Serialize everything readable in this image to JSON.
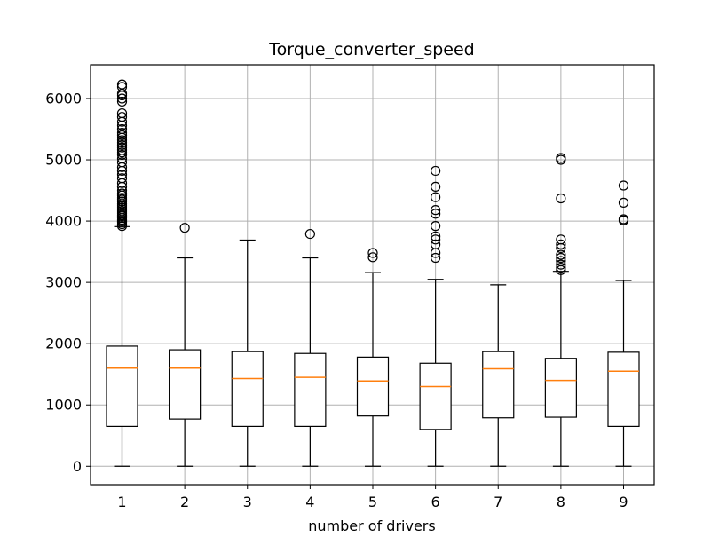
{
  "chart_data": {
    "type": "box",
    "title": "Torque_converter_speed",
    "xlabel": "number of drivers",
    "ylabel": "",
    "categories": [
      "1",
      "2",
      "3",
      "4",
      "5",
      "6",
      "7",
      "8",
      "9"
    ],
    "ylim": [
      -300,
      6550
    ],
    "yticks": [
      0,
      1000,
      2000,
      3000,
      4000,
      5000,
      6000
    ],
    "yticklabels": [
      "0",
      "1000",
      "2000",
      "3000",
      "4000",
      "5000",
      "6000"
    ],
    "grid": true,
    "colors": {
      "box": "#000000",
      "median": "#ff7f0e",
      "grid": "#b0b0b0",
      "flier": "#000000"
    },
    "boxes": [
      {
        "label": "1",
        "whisker_low": 0,
        "q1": 650,
        "median": 1600,
        "q3": 1960,
        "whisker_high": 3910,
        "fliers": [
          3920,
          3950,
          3980,
          4000,
          4020,
          4050,
          4080,
          4100,
          4130,
          4160,
          4190,
          4220,
          4250,
          4280,
          4320,
          4350,
          4380,
          4420,
          4450,
          4500,
          4560,
          4620,
          4700,
          4760,
          4820,
          4880,
          4960,
          5020,
          5080,
          5120,
          5160,
          5200,
          5240,
          5280,
          5320,
          5360,
          5400,
          5440,
          5500,
          5560,
          5620,
          5700,
          5760,
          5950,
          6000,
          6050,
          6080,
          6190,
          6230
        ]
      },
      {
        "label": "2",
        "whisker_low": 0,
        "q1": 770,
        "median": 1600,
        "q3": 1900,
        "whisker_high": 3400,
        "fliers": [
          3890
        ]
      },
      {
        "label": "3",
        "whisker_low": 0,
        "q1": 650,
        "median": 1430,
        "q3": 1870,
        "whisker_high": 3690,
        "fliers": []
      },
      {
        "label": "4",
        "whisker_low": 0,
        "q1": 650,
        "median": 1450,
        "q3": 1840,
        "whisker_high": 3400,
        "fliers": [
          3790
        ]
      },
      {
        "label": "5",
        "whisker_low": 0,
        "q1": 820,
        "median": 1390,
        "q3": 1780,
        "whisker_high": 3160,
        "fliers": [
          3410,
          3480
        ]
      },
      {
        "label": "6",
        "whisker_low": 0,
        "q1": 600,
        "median": 1300,
        "q3": 1680,
        "whisker_high": 3050,
        "fliers": [
          3400,
          3480,
          3620,
          3700,
          3750,
          3920,
          4120,
          4180,
          4390,
          4560,
          4820
        ]
      },
      {
        "label": "7",
        "whisker_low": 0,
        "q1": 790,
        "median": 1590,
        "q3": 1870,
        "whisker_high": 2960,
        "fliers": []
      },
      {
        "label": "8",
        "whisker_low": 0,
        "q1": 800,
        "median": 1400,
        "q3": 1760,
        "whisker_high": 3180,
        "fliers": [
          3200,
          3240,
          3290,
          3350,
          3400,
          3450,
          3560,
          3620,
          3700,
          4370,
          5000,
          5030
        ]
      },
      {
        "label": "9",
        "whisker_low": 0,
        "q1": 650,
        "median": 1550,
        "q3": 1860,
        "whisker_high": 3030,
        "fliers": [
          4010,
          4030,
          4300,
          4580
        ]
      }
    ]
  }
}
